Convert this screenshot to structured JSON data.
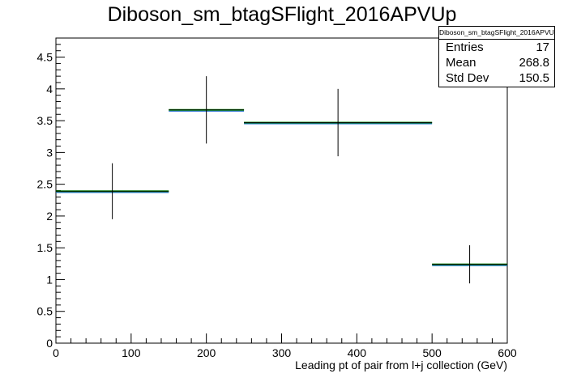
{
  "title": "Diboson_sm_btagSFlight_2016APVUp",
  "stats": {
    "name": "Diboson_sm_btagSFlight_2016APVUp",
    "rows": [
      {
        "label": "Entries",
        "value": "17"
      },
      {
        "label": "Mean",
        "value": "268.8"
      },
      {
        "label": "Std Dev",
        "value": "150.5"
      }
    ]
  },
  "chart_data": {
    "type": "bar",
    "title": "Diboson_sm_btagSFlight_2016APVUp",
    "xlabel": "Leading pt of pair from l+j collection (GeV)",
    "ylabel": "",
    "xlim": [
      0,
      600
    ],
    "ylim": [
      0,
      4.8
    ],
    "xticks": [
      0,
      100,
      200,
      300,
      400,
      500,
      600
    ],
    "yticks": [
      0,
      0.5,
      1,
      1.5,
      2,
      2.5,
      3,
      3.5,
      4,
      4.5
    ],
    "xtick_labels": [
      "0",
      "100",
      "200",
      "300",
      "400",
      "500",
      "600"
    ],
    "ytick_labels": [
      "0",
      "0.5",
      "1",
      "1.5",
      "2",
      "2.5",
      "3",
      "3.5",
      "4",
      "4.5"
    ],
    "bins": [
      {
        "x_low": 0,
        "x_high": 150,
        "value": 2.39,
        "err": 0.44
      },
      {
        "x_low": 150,
        "x_high": 250,
        "value": 3.67,
        "err": 0.53
      },
      {
        "x_low": 250,
        "x_high": 500,
        "value": 3.47,
        "err": 0.53
      },
      {
        "x_low": 500,
        "x_high": 600,
        "value": 1.24,
        "err": 0.3
      }
    ],
    "colors": {
      "points": "#000000",
      "line": "#008000",
      "fill": "#1a66cc"
    },
    "grid": false,
    "legend": "top-right"
  }
}
